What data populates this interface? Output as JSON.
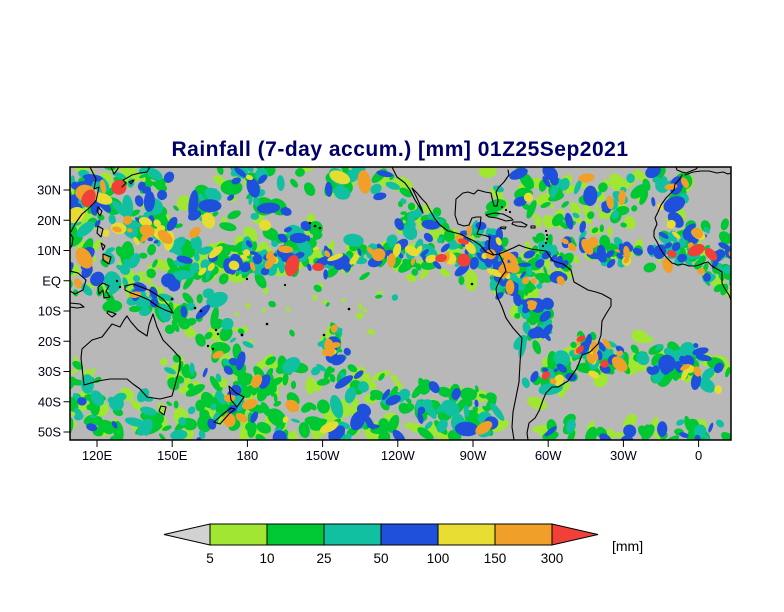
{
  "title": "Rainfall (7-day accum.) [mm] 01Z25Sep2021",
  "axes": {
    "lat_labels": [
      "30N",
      "20N",
      "10N",
      "EQ",
      "10S",
      "20S",
      "30S",
      "40S",
      "50S"
    ],
    "lon_labels": [
      "120E",
      "150E",
      "180",
      "150W",
      "120W",
      "90W",
      "60W",
      "30W",
      "0"
    ]
  },
  "colorbar": {
    "labels": [
      "5",
      "10",
      "25",
      "50",
      "100",
      "150",
      "300"
    ],
    "unit": "[mm]",
    "under_color": "#d2d2d2",
    "colors": [
      "#a0e632",
      "#00c832",
      "#10c0a0",
      "#1e50dc",
      "#e6dc32",
      "#f0a028"
    ],
    "over_color": "#f04038"
  },
  "map": {
    "background": "#b8b8b8",
    "coast_color": "#000000"
  },
  "chart_data": {
    "type": "heatmap",
    "title": "Rainfall (7-day accum.) [mm] 01Z25Sep2021",
    "x_tick_labels": [
      "120E",
      "150E",
      "180",
      "150W",
      "120W",
      "90W",
      "60W",
      "30W",
      "0"
    ],
    "y_tick_labels": [
      "30N",
      "20N",
      "10N",
      "EQ",
      "10S",
      "20S",
      "30S",
      "40S",
      "50S"
    ],
    "colorbar_levels": [
      5,
      10,
      25,
      50,
      100,
      150,
      300
    ],
    "colorbar_unit": "[mm]",
    "rain_bands": [
      {
        "pts": [
          [
            0,
            45
          ],
          [
            60,
            40
          ],
          [
            120,
            55
          ],
          [
            200,
            70
          ],
          [
            240,
            80
          ]
        ],
        "th": 34,
        "n": 140,
        "w": [
          0.2,
          0.3,
          0.2,
          0.18,
          0.04,
          0.07,
          0.01
        ],
        "s": [
          3,
          10
        ]
      },
      {
        "pts": [
          [
            0,
            100
          ],
          [
            50,
            112
          ],
          [
            110,
            122
          ],
          [
            152,
            118
          ]
        ],
        "th": 26,
        "n": 90,
        "w": [
          0.26,
          0.36,
          0.2,
          0.12,
          0.02,
          0.04,
          0
        ],
        "s": [
          3,
          9
        ]
      },
      {
        "pts": [
          [
            70,
            125
          ],
          [
            130,
            160
          ],
          [
            185,
            200
          ],
          [
            215,
            222
          ]
        ],
        "th": 20,
        "n": 80,
        "w": [
          0.3,
          0.4,
          0.18,
          0.09,
          0.01,
          0.02,
          0
        ],
        "s": [
          3,
          8
        ]
      },
      {
        "pts": [
          [
            110,
            96
          ],
          [
            200,
            92
          ],
          [
            290,
            88
          ],
          [
            370,
            88
          ],
          [
            425,
            96
          ]
        ],
        "th": 9,
        "n": 140,
        "w": [
          0.14,
          0.28,
          0.22,
          0.2,
          0.05,
          0.09,
          0.02
        ],
        "s": [
          3,
          7
        ]
      },
      {
        "pts": [
          [
            110,
            96
          ],
          [
            200,
            92
          ],
          [
            290,
            88
          ],
          [
            370,
            88
          ],
          [
            425,
            96
          ]
        ],
        "th": 24,
        "n": 80,
        "w": [
          0.52,
          0.36,
          0.09,
          0.03,
          0,
          0,
          0
        ],
        "s": [
          3,
          8
        ]
      },
      {
        "pts": [
          [
            150,
            93
          ],
          [
            220,
            90
          ],
          [
            300,
            88
          ]
        ],
        "th": 6,
        "n": 16,
        "w": [
          0.08,
          0.18,
          0.18,
          0.22,
          0.12,
          0.18,
          0.04
        ],
        "s": [
          2,
          6
        ]
      },
      {
        "pts": [
          [
            398,
            62
          ],
          [
            420,
            85
          ],
          [
            437,
            110
          ],
          [
            442,
            128
          ]
        ],
        "th": 16,
        "n": 85,
        "w": [
          0.14,
          0.26,
          0.22,
          0.2,
          0.06,
          0.1,
          0.02
        ],
        "s": [
          3,
          8
        ]
      },
      {
        "pts": [
          [
            432,
            95
          ],
          [
            438,
            110
          ]
        ],
        "th": 8,
        "n": 12,
        "w": [
          0.08,
          0.18,
          0.16,
          0.22,
          0.12,
          0.2,
          0.04
        ],
        "s": [
          2,
          6
        ]
      },
      {
        "pts": [
          [
            446,
            95
          ],
          [
            462,
            125
          ],
          [
            460,
            155
          ],
          [
            470,
            176
          ]
        ],
        "th": 18,
        "n": 75,
        "w": [
          0.22,
          0.32,
          0.2,
          0.16,
          0.03,
          0.07,
          0
        ],
        "s": [
          3,
          8
        ]
      },
      {
        "pts": [
          [
            452,
            92
          ],
          [
            480,
            100
          ],
          [
            500,
            106
          ]
        ],
        "th": 12,
        "n": 40,
        "w": [
          0.3,
          0.36,
          0.2,
          0.12,
          0.01,
          0.01,
          0
        ],
        "s": [
          3,
          7
        ]
      },
      {
        "pts": [
          [
            465,
            80
          ],
          [
            520,
            84
          ],
          [
            580,
            88
          ],
          [
            660,
            93
          ]
        ],
        "th": 11,
        "n": 85,
        "w": [
          0.16,
          0.28,
          0.22,
          0.18,
          0.05,
          0.09,
          0.02
        ],
        "s": [
          3,
          7
        ]
      },
      {
        "pts": [
          [
            543,
            82
          ],
          [
            562,
            88
          ]
        ],
        "th": 8,
        "n": 14,
        "w": [
          0.08,
          0.18,
          0.16,
          0.2,
          0.12,
          0.22,
          0.04
        ],
        "s": [
          2,
          6
        ]
      },
      {
        "pts": [
          [
            420,
            25
          ],
          [
            470,
            20
          ],
          [
            520,
            30
          ],
          [
            575,
            22
          ],
          [
            622,
            30
          ]
        ],
        "th": 20,
        "n": 85,
        "w": [
          0.3,
          0.36,
          0.18,
          0.12,
          0.01,
          0.03,
          0
        ],
        "s": [
          3,
          9
        ]
      },
      {
        "pts": [
          [
            470,
            45
          ],
          [
            520,
            55
          ],
          [
            560,
            50
          ]
        ],
        "th": 12,
        "n": 35,
        "w": [
          0.48,
          0.36,
          0.1,
          0.06,
          0,
          0,
          0
        ],
        "s": [
          3,
          7
        ]
      },
      {
        "pts": [
          [
            595,
            70
          ],
          [
            630,
            78
          ],
          [
            660,
            72
          ]
        ],
        "th": 16,
        "n": 55,
        "w": [
          0.18,
          0.28,
          0.2,
          0.18,
          0.05,
          0.09,
          0.02
        ],
        "s": [
          3,
          8
        ]
      },
      {
        "pts": [
          [
            640,
            104
          ],
          [
            658,
            118
          ]
        ],
        "th": 12,
        "n": 20,
        "w": [
          0.4,
          0.38,
          0.14,
          0.08,
          0,
          0,
          0
        ],
        "s": [
          3,
          6
        ]
      },
      {
        "pts": [
          [
            0,
            238
          ],
          [
            70,
            248
          ],
          [
            150,
            242
          ],
          [
            230,
            252
          ],
          [
            310,
            246
          ],
          [
            395,
            252
          ],
          [
            430,
            250
          ]
        ],
        "th": 18,
        "n": 140,
        "w": [
          0.34,
          0.38,
          0.16,
          0.09,
          0.01,
          0.02,
          0
        ],
        "s": [
          3,
          9
        ]
      },
      {
        "pts": [
          [
            140,
            220
          ],
          [
            210,
            205
          ],
          [
            280,
            216
          ],
          [
            350,
            228
          ],
          [
            420,
            236
          ]
        ],
        "th": 13,
        "n": 85,
        "w": [
          0.4,
          0.38,
          0.14,
          0.07,
          0.005,
          0.005,
          0
        ],
        "s": [
          3,
          8
        ]
      },
      {
        "pts": [
          [
            256,
            170
          ],
          [
            268,
            180
          ],
          [
            262,
            192
          ]
        ],
        "th": 12,
        "n": 30,
        "w": [
          0.1,
          0.24,
          0.18,
          0.16,
          0.1,
          0.19,
          0.03
        ],
        "s": [
          3,
          7
        ]
      },
      {
        "pts": [
          [
            460,
            220
          ],
          [
            510,
            198
          ],
          [
            560,
            188
          ],
          [
            615,
            196
          ],
          [
            660,
            212
          ]
        ],
        "th": 16,
        "n": 110,
        "w": [
          0.28,
          0.36,
          0.17,
          0.12,
          0.02,
          0.05,
          0
        ],
        "s": [
          3,
          9
        ]
      },
      {
        "pts": [
          [
            505,
            175
          ],
          [
            530,
            186
          ],
          [
            552,
            196
          ]
        ],
        "th": 12,
        "n": 40,
        "w": [
          0.16,
          0.28,
          0.2,
          0.2,
          0.05,
          0.09,
          0.02
        ],
        "s": [
          3,
          7
        ]
      },
      {
        "pts": [
          [
            480,
            204
          ],
          [
            494,
            210
          ]
        ],
        "th": 9,
        "n": 14,
        "w": [
          0.08,
          0.2,
          0.16,
          0.2,
          0.12,
          0.2,
          0.04
        ],
        "s": [
          2,
          6
        ]
      },
      {
        "pts": [
          [
            612,
            196
          ],
          [
            628,
            205
          ]
        ],
        "th": 8,
        "n": 12,
        "w": [
          0.08,
          0.2,
          0.16,
          0.2,
          0.12,
          0.2,
          0.04
        ],
        "s": [
          2,
          6
        ]
      },
      {
        "pts": [
          [
            150,
            8
          ],
          [
            220,
            16
          ],
          [
            290,
            10
          ],
          [
            340,
            22
          ]
        ],
        "th": 14,
        "n": 60,
        "w": [
          0.3,
          0.36,
          0.18,
          0.13,
          0.01,
          0.02,
          0
        ],
        "s": [
          3,
          8
        ]
      },
      {
        "pts": [
          [
            58,
            54
          ],
          [
            90,
            62
          ],
          [
            76,
            76
          ]
        ],
        "th": 12,
        "n": 28,
        "w": [
          0.1,
          0.22,
          0.16,
          0.2,
          0.1,
          0.19,
          0.03
        ],
        "s": [
          3,
          7
        ]
      },
      {
        "pts": [
          [
            140,
            226
          ],
          [
            165,
            238
          ],
          [
            186,
            250
          ]
        ],
        "th": 12,
        "n": 32,
        "w": [
          0.32,
          0.38,
          0.16,
          0.1,
          0.01,
          0.03,
          0
        ],
        "s": [
          3,
          7
        ]
      },
      {
        "pts": [
          [
            100,
            186
          ],
          [
            112,
            206
          ],
          [
            120,
            222
          ]
        ],
        "th": 10,
        "n": 26,
        "w": [
          0.5,
          0.36,
          0.1,
          0.04,
          0,
          0,
          0
        ],
        "s": [
          3,
          6
        ]
      },
      {
        "pts": [
          [
            0,
            198
          ],
          [
            20,
            226
          ],
          [
            8,
            256
          ]
        ],
        "th": 14,
        "n": 32,
        "w": [
          0.5,
          0.36,
          0.1,
          0.04,
          0,
          0,
          0
        ],
        "s": [
          3,
          8
        ]
      },
      {
        "pts": [
          [
            330,
            42
          ],
          [
            356,
            56
          ],
          [
            376,
            66
          ]
        ],
        "th": 12,
        "n": 38,
        "w": [
          0.3,
          0.36,
          0.18,
          0.14,
          0.01,
          0.01,
          0
        ],
        "s": [
          3,
          7
        ]
      },
      {
        "pts": [
          [
            0,
            10
          ],
          [
            20,
            30
          ],
          [
            12,
            52
          ]
        ],
        "th": 18,
        "n": 40,
        "w": [
          0.28,
          0.36,
          0.2,
          0.13,
          0.01,
          0.02,
          0
        ],
        "s": [
          3,
          8
        ]
      },
      {
        "pts": [
          [
            40,
            5
          ],
          [
            70,
            11
          ],
          [
            100,
            8
          ]
        ],
        "th": 10,
        "n": 30,
        "w": [
          0.28,
          0.36,
          0.2,
          0.13,
          0.01,
          0.02,
          0
        ],
        "s": [
          3,
          7
        ]
      },
      {
        "pts": [
          [
            160,
            150
          ],
          [
            260,
            142
          ],
          [
            330,
            152
          ]
        ],
        "th": 28,
        "n": 26,
        "w": [
          0.7,
          0.26,
          0.04,
          0,
          0,
          0,
          0
        ],
        "s": [
          2,
          4
        ]
      },
      {
        "pts": [
          [
            0,
            262
          ],
          [
            80,
            266
          ],
          [
            160,
            260
          ],
          [
            240,
            266
          ],
          [
            330,
            262
          ],
          [
            420,
            266
          ]
        ],
        "th": 9,
        "n": 70,
        "w": [
          0.3,
          0.36,
          0.2,
          0.13,
          0.005,
          0.005,
          0
        ],
        "s": [
          3,
          8
        ]
      },
      {
        "pts": [
          [
            470,
            262
          ],
          [
            560,
            266
          ],
          [
            660,
            262
          ]
        ],
        "th": 9,
        "n": 45,
        "w": [
          0.34,
          0.38,
          0.17,
          0.1,
          0.005,
          0.005,
          0
        ],
        "s": [
          3,
          8
        ]
      }
    ]
  }
}
